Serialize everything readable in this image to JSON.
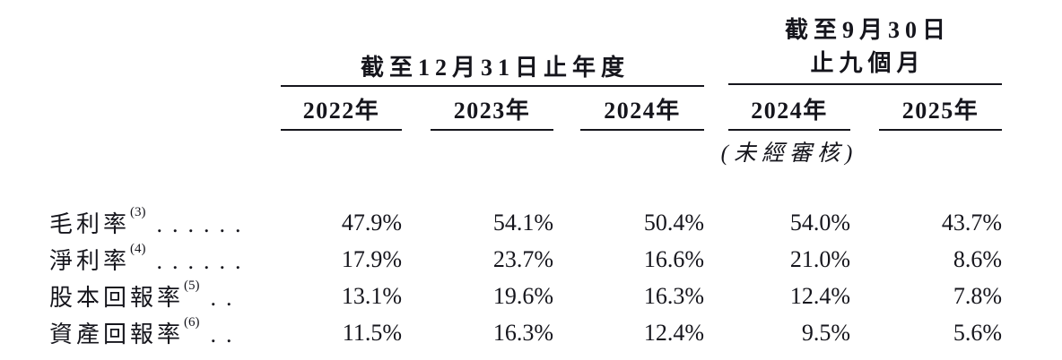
{
  "colors": {
    "text": "#15151c",
    "background": "#ffffff",
    "rule": "#15151c"
  },
  "table": {
    "col_groups": [
      {
        "title_lines": [
          "截至12月31日止年度"
        ],
        "columns": [
          "2022年",
          "2023年",
          "2024年"
        ]
      },
      {
        "title_lines": [
          "截至9月30日",
          "止九個月"
        ],
        "columns": [
          "2024年",
          "2025年"
        ],
        "subnote": "(未經審核)"
      }
    ],
    "rows": [
      {
        "label": "毛利率",
        "note": "(3)",
        "dots": "......",
        "values": [
          "47.9%",
          "54.1%",
          "50.4%",
          "54.0%",
          "43.7%"
        ]
      },
      {
        "label": "淨利率",
        "note": "(4)",
        "dots": "......",
        "values": [
          "17.9%",
          "23.7%",
          "16.6%",
          "21.0%",
          "8.6%"
        ]
      },
      {
        "label": "股本回報率",
        "note": "(5)",
        "dots": "..",
        "values": [
          "13.1%",
          "19.6%",
          "16.3%",
          "12.4%",
          "7.8%"
        ]
      },
      {
        "label": "資產回報率",
        "note": "(6)",
        "dots": "..",
        "values": [
          "11.5%",
          "16.3%",
          "12.4%",
          "9.5%",
          "5.6%"
        ]
      }
    ]
  }
}
